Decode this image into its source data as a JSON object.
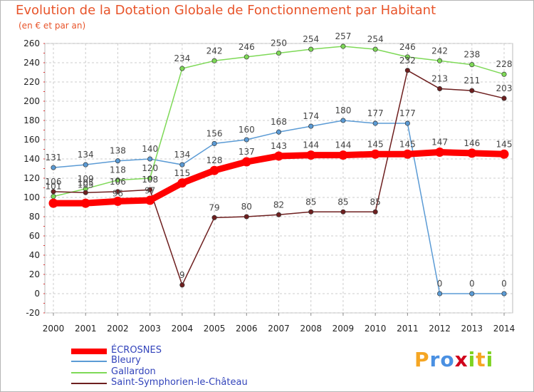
{
  "chart_data": {
    "type": "line",
    "title": "Evolution de la Dotation Globale de Fonctionnement par Habitant",
    "subtitle": "(en € et par an)",
    "xlabel": "",
    "ylabel": "",
    "ylim": [
      -20,
      260
    ],
    "yticks": [
      -20,
      0,
      20,
      40,
      60,
      80,
      100,
      120,
      140,
      160,
      180,
      200,
      220,
      240,
      260
    ],
    "grid": true,
    "legend_position": "bottom-left",
    "x": [
      2000,
      2001,
      2002,
      2003,
      2004,
      2005,
      2006,
      2007,
      2008,
      2009,
      2010,
      2011,
      2012,
      2013,
      2014
    ],
    "series": [
      {
        "name": "ÉCROSNES",
        "color": "#ff0000",
        "values": [
          94,
          94,
          96,
          97,
          115,
          128,
          137,
          143,
          144,
          144,
          145,
          145,
          147,
          146,
          145
        ],
        "labels": [
          "",
          "",
          "",
          "",
          "115",
          "128",
          "137",
          "143",
          "144",
          "144",
          "145",
          "145",
          "147",
          "146",
          "145"
        ]
      },
      {
        "name": "Bleury",
        "color": "#5b9bd5",
        "values": [
          131,
          134,
          138,
          140,
          134,
          156,
          160,
          168,
          174,
          180,
          177,
          177,
          0,
          0,
          0
        ],
        "labels": [
          "131",
          "134",
          "138",
          "140",
          "134",
          "156",
          "160",
          "168",
          "174",
          "180",
          "177",
          "177",
          "0",
          "0",
          "0"
        ]
      },
      {
        "name": "Gallardon",
        "color": "#7ed957",
        "values": [
          101,
          109,
          118,
          120,
          234,
          242,
          246,
          250,
          254,
          257,
          254,
          246,
          242,
          238,
          228
        ],
        "labels": [
          "101",
          "109",
          "118",
          "120",
          "234",
          "242",
          "246",
          "250",
          "254",
          "257",
          "254",
          "246",
          "242",
          "238",
          "228"
        ]
      },
      {
        "name": "Saint-Symphorien-le-Château",
        "color": "#6e1f1f",
        "values": [
          106,
          105,
          106,
          108,
          9,
          79,
          80,
          82,
          85,
          85,
          85,
          232,
          213,
          211,
          203
        ],
        "labels": [
          "106",
          "105",
          "106",
          "108",
          "9",
          "79",
          "80",
          "82",
          "85",
          "85",
          "85",
          "232",
          "213",
          "211",
          "203"
        ]
      }
    ],
    "overlap_labels": [
      "105",
      "96",
      "97"
    ]
  },
  "colors": {
    "title": "#e8542a",
    "grid": "#cccccc",
    "text": "#222222",
    "legend_text": "#3344bb"
  },
  "legend": {
    "items": [
      "ÉCROSNES",
      "Bleury",
      "Gallardon",
      "Saint-Symphorien-le-Château"
    ]
  },
  "logo": {
    "p": "P",
    "r": "r",
    "o": "o",
    "x": "x",
    "i1": "i",
    "t": "t",
    "i2": "i"
  }
}
